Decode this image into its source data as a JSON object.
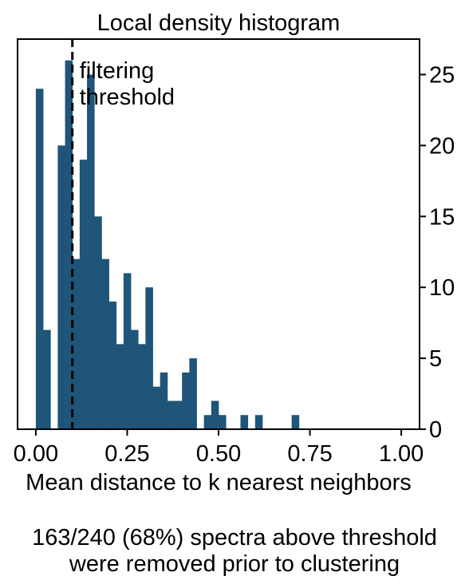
{
  "chart_data": {
    "type": "bar",
    "title": "Local density histogram",
    "xlabel": "Mean distance to k nearest neighbors",
    "ylabel": "",
    "xlim": [
      -0.05,
      1.05
    ],
    "ylim": [
      0,
      27.5
    ],
    "x_ticks": [
      0.0,
      0.25,
      0.5,
      0.75,
      1.0
    ],
    "x_tick_labels": [
      "0.00",
      "0.25",
      "0.50",
      "0.75",
      "1.00"
    ],
    "y_ticks": [
      0,
      5,
      10,
      15,
      20,
      25
    ],
    "y_tick_labels": [
      "0",
      "5",
      "10",
      "15",
      "20",
      "25"
    ],
    "y_axis_side": "right",
    "bin_width": 0.02,
    "bin_starts": [
      0.0,
      0.02,
      0.04,
      0.06,
      0.08,
      0.1,
      0.12,
      0.14,
      0.16,
      0.18,
      0.2,
      0.22,
      0.24,
      0.26,
      0.28,
      0.3,
      0.32,
      0.34,
      0.36,
      0.38,
      0.4,
      0.42,
      0.44,
      0.46,
      0.48,
      0.5,
      0.52,
      0.54,
      0.56,
      0.58,
      0.6,
      0.62,
      0.64,
      0.66,
      0.68,
      0.7,
      0.72,
      0.74
    ],
    "values": [
      24,
      7,
      0,
      20,
      26,
      12,
      19,
      25,
      15,
      12,
      9,
      6,
      11,
      7,
      6,
      10,
      3,
      4,
      2,
      2,
      4,
      5,
      0,
      1,
      2,
      1,
      0,
      0,
      1,
      0,
      1,
      0,
      0,
      0,
      0,
      1,
      0,
      0
    ],
    "bar_color": "#1f5578",
    "threshold": 0.1,
    "threshold_label_lines": [
      "filtering",
      "threshold"
    ],
    "threshold_style": "dashed black",
    "grid": false
  },
  "caption": {
    "line1": "163/240 (68%) spectra above threshold",
    "line2": "were removed prior to clustering"
  }
}
